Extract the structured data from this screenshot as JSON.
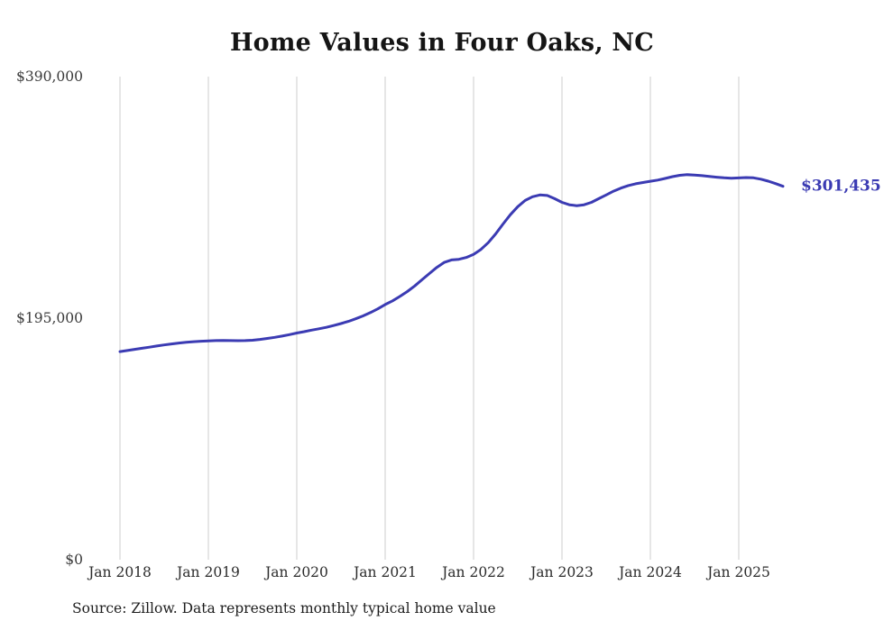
{
  "source_note": "Source: Zillow. Data represents monthly typical home value",
  "chart_data": {
    "type": "line",
    "title": "Home Values in Four Oaks, NC",
    "series_name": "Typical home value",
    "legend": "none",
    "grid": "vertical-only",
    "line_color": "#3b3bb3",
    "grid_color": "#cccccc",
    "ylim": [
      0,
      390000
    ],
    "end_label": "$301,435",
    "end_value": 301435,
    "y_ticks": [
      {
        "value": 0,
        "label": "$0"
      },
      {
        "value": 195000,
        "label": "$195,000"
      },
      {
        "value": 390000,
        "label": "$390,000"
      }
    ],
    "x_ticks": [
      {
        "index": 0,
        "label": "Jan 2018"
      },
      {
        "index": 12,
        "label": "Jan 2019"
      },
      {
        "index": 24,
        "label": "Jan 2020"
      },
      {
        "index": 36,
        "label": "Jan 2021"
      },
      {
        "index": 48,
        "label": "Jan 2022"
      },
      {
        "index": 60,
        "label": "Jan 2023"
      },
      {
        "index": 72,
        "label": "Jan 2024"
      },
      {
        "index": 84,
        "label": "Jan 2025"
      }
    ],
    "x": [
      "2018-01",
      "2018-02",
      "2018-03",
      "2018-04",
      "2018-05",
      "2018-06",
      "2018-07",
      "2018-08",
      "2018-09",
      "2018-10",
      "2018-11",
      "2018-12",
      "2019-01",
      "2019-02",
      "2019-03",
      "2019-04",
      "2019-05",
      "2019-06",
      "2019-07",
      "2019-08",
      "2019-09",
      "2019-10",
      "2019-11",
      "2019-12",
      "2020-01",
      "2020-02",
      "2020-03",
      "2020-04",
      "2020-05",
      "2020-06",
      "2020-07",
      "2020-08",
      "2020-09",
      "2020-10",
      "2020-11",
      "2020-12",
      "2021-01",
      "2021-02",
      "2021-03",
      "2021-04",
      "2021-05",
      "2021-06",
      "2021-07",
      "2021-08",
      "2021-09",
      "2021-10",
      "2021-11",
      "2021-12",
      "2022-01",
      "2022-02",
      "2022-03",
      "2022-04",
      "2022-05",
      "2022-06",
      "2022-07",
      "2022-08",
      "2022-09",
      "2022-10",
      "2022-11",
      "2022-12",
      "2023-01",
      "2023-02",
      "2023-03",
      "2023-04",
      "2023-05",
      "2023-06",
      "2023-07",
      "2023-08",
      "2023-09",
      "2023-10",
      "2023-11",
      "2023-12",
      "2024-01",
      "2024-02",
      "2024-03",
      "2024-04",
      "2024-05",
      "2024-06",
      "2024-07",
      "2024-08",
      "2024-09",
      "2024-10",
      "2024-11",
      "2024-12",
      "2025-01",
      "2025-02",
      "2025-03",
      "2025-04",
      "2025-05",
      "2025-06",
      "2025-07"
    ],
    "values": [
      168000,
      168900,
      169800,
      170700,
      171600,
      172500,
      173400,
      174200,
      174900,
      175500,
      176000,
      176400,
      176700,
      176900,
      177000,
      176900,
      176800,
      176900,
      177200,
      177800,
      178600,
      179500,
      180500,
      181700,
      183000,
      184100,
      185300,
      186400,
      187600,
      189000,
      190600,
      192400,
      194500,
      196800,
      199500,
      202500,
      206000,
      209000,
      212500,
      216500,
      221000,
      226000,
      231000,
      236000,
      240000,
      242000,
      242500,
      244000,
      246500,
      250500,
      256000,
      263000,
      271000,
      278500,
      285000,
      290000,
      293000,
      294500,
      294000,
      291500,
      288500,
      286500,
      285800,
      286500,
      288500,
      291500,
      294500,
      297500,
      300000,
      302000,
      303500,
      304500,
      305500,
      306500,
      307800,
      309200,
      310300,
      310800,
      310500,
      310000,
      309400,
      308800,
      308300,
      308000,
      308200,
      308500,
      308300,
      307200,
      305600,
      303600,
      301435
    ]
  }
}
